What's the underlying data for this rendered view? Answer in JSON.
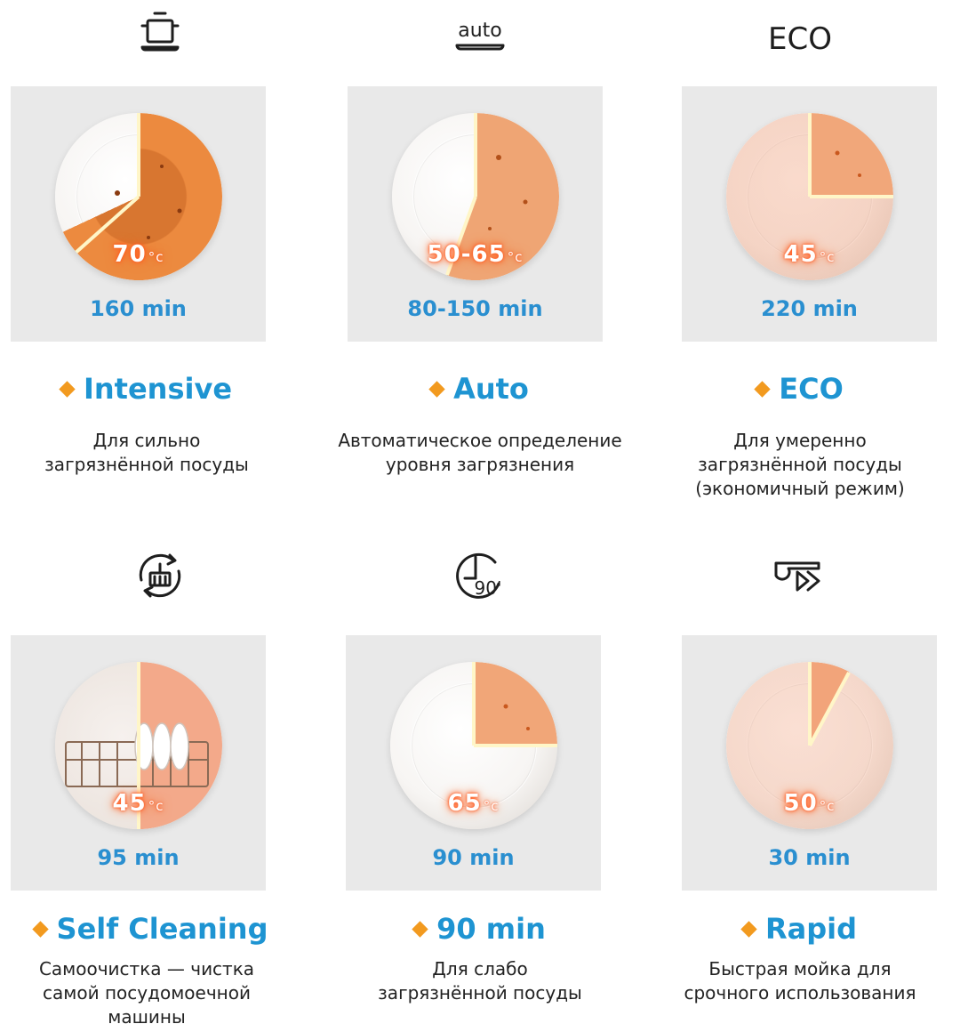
{
  "programs": [
    {
      "icon": "pot-icon",
      "temp_value": "70",
      "temp_unit": "c",
      "duration": "160 min",
      "title": "Intensive",
      "description": [
        "Для сильно",
        "загрязнённой посуды"
      ]
    },
    {
      "icon": "auto-icon",
      "icon_text": "auto",
      "temp_value": "50-65",
      "temp_unit": "c",
      "duration": "80-150 min",
      "title": "Auto",
      "description": [
        "Автоматическое определение",
        "уровня загрязнения"
      ]
    },
    {
      "icon": "eco-icon",
      "icon_text": "ECO",
      "temp_value": "45",
      "temp_unit": "c",
      "duration": "220 min",
      "title": "ECO",
      "description": [
        "Для умеренно",
        "загрязнённой посуды",
        "(экономичный режим)"
      ]
    },
    {
      "icon": "self-cleaning-icon",
      "temp_value": "45",
      "temp_unit": "c",
      "duration": "95 min",
      "title": "Self Cleaning",
      "description": [
        "Самоочистка — чистка",
        "самой посудомоечной",
        "машины"
      ]
    },
    {
      "icon": "clock-90-icon",
      "icon_text": "90'",
      "temp_value": "65",
      "temp_unit": "c",
      "duration": "90 min",
      "title": "90 min",
      "description": [
        "Для слабо",
        "загрязнённой посуды"
      ]
    },
    {
      "icon": "rapid-icon",
      "temp_value": "50",
      "temp_unit": "c",
      "duration": "30 min",
      "title": "Rapid",
      "description": [
        "Быстрая мойка для",
        "срочного использования"
      ]
    }
  ],
  "colors": {
    "accent_blue": "#1e94d2",
    "duration_blue": "#2a8fd0",
    "diamond_orange": "#f29a1f",
    "soil_orange": "#f07a2a",
    "panel_gray": "#e9e9e9"
  }
}
